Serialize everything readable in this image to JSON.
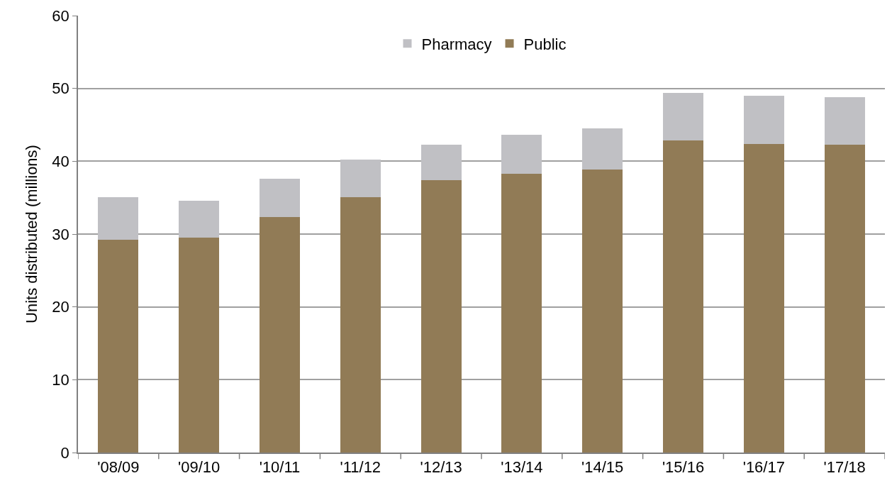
{
  "chart_data": {
    "type": "bar",
    "stacked": true,
    "ylabel": "Units distributed (millions)",
    "categories": [
      "'08/09",
      "'09/10",
      "'10/11",
      "'11/12",
      "'12/13",
      "'13/14",
      "'14/15",
      "'15/16",
      "'16/17",
      "'17/18"
    ],
    "series": [
      {
        "name": "Public",
        "color": "#917b56",
        "values": [
          29.2,
          29.5,
          32.3,
          35.1,
          37.4,
          38.3,
          38.9,
          42.9,
          42.4,
          42.3
        ]
      },
      {
        "name": "Pharmacy",
        "color": "#c0c0c4",
        "values": [
          5.9,
          5.1,
          5.3,
          5.1,
          4.9,
          5.3,
          5.6,
          6.5,
          6.6,
          6.5
        ]
      }
    ],
    "ylim": [
      0,
      60
    ],
    "yticks": [
      0,
      10,
      20,
      30,
      40,
      50,
      60
    ],
    "grid": "y",
    "legend": "top"
  }
}
